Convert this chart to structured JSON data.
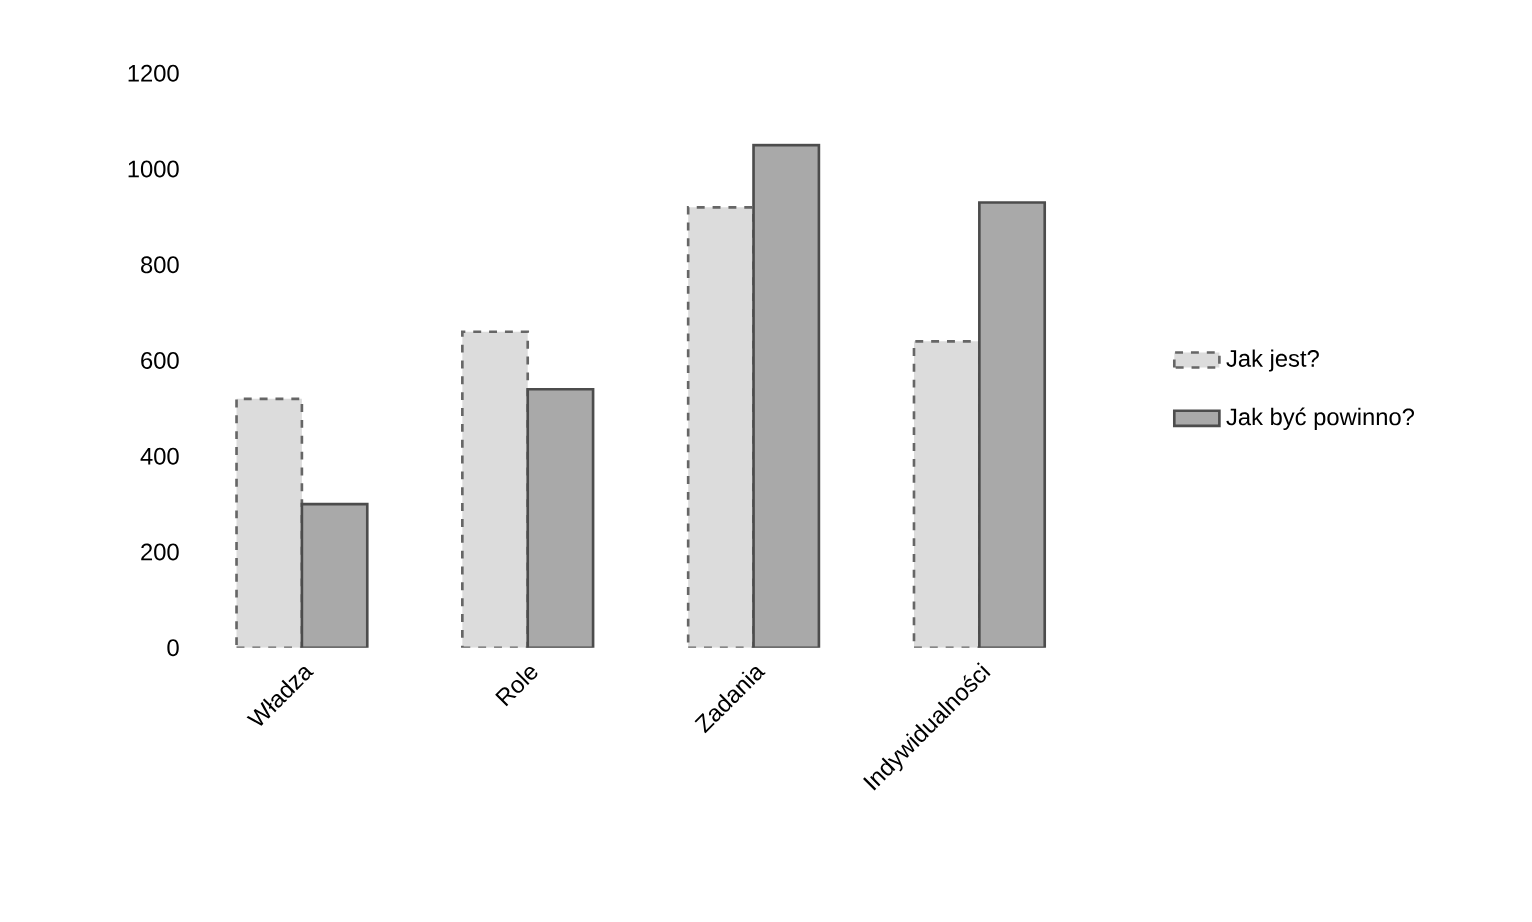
{
  "chart_data": {
    "type": "bar",
    "categories": [
      "Władza",
      "Role",
      "Zadania",
      "Indywidualności"
    ],
    "series": [
      {
        "name": "Jak jest?",
        "color": "#dcdcdc",
        "line_style": "dashed",
        "values": [
          520,
          660,
          920,
          640
        ]
      },
      {
        "name": "Jak być powinno?",
        "color": "#a9a9a9",
        "line_style": "solid",
        "values": [
          300,
          540,
          1050,
          930
        ]
      }
    ],
    "ylim": [
      0,
      1200
    ],
    "yticks": [
      0,
      200,
      400,
      600,
      800,
      1000,
      1200
    ],
    "legend": "right"
  }
}
